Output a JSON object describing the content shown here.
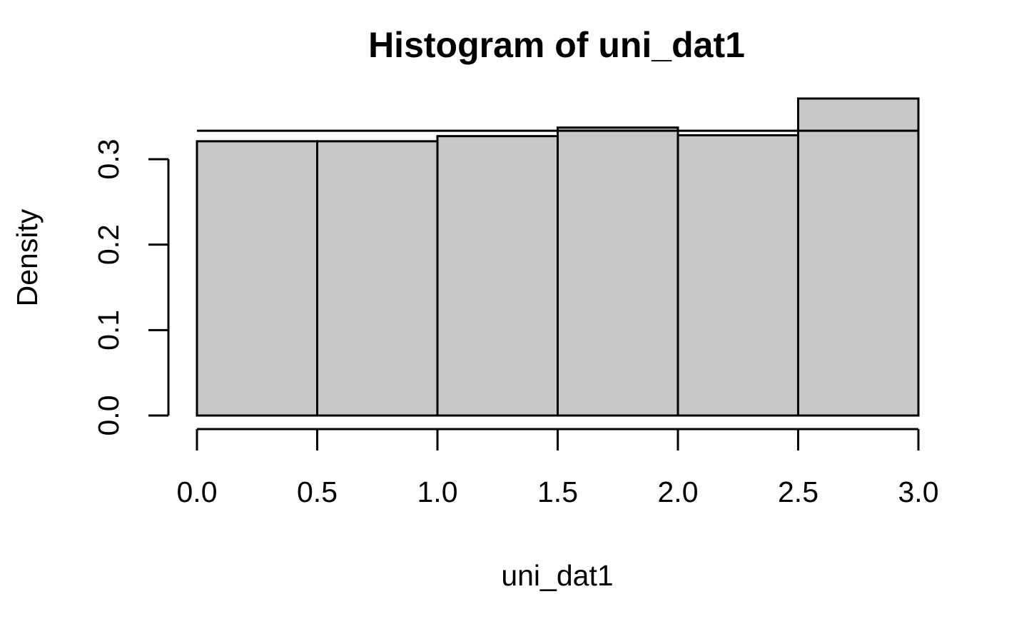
{
  "chart_data": {
    "type": "bar",
    "title": "Histogram of uni_dat1",
    "xlabel": "uni_dat1",
    "ylabel": "Density",
    "bins": [
      {
        "x0": 0.0,
        "x1": 0.5,
        "density": 0.321
      },
      {
        "x0": 0.5,
        "x1": 1.0,
        "density": 0.321
      },
      {
        "x0": 1.0,
        "x1": 1.5,
        "density": 0.327
      },
      {
        "x0": 1.5,
        "x1": 2.0,
        "density": 0.337
      },
      {
        "x0": 2.0,
        "x1": 2.5,
        "density": 0.328
      },
      {
        "x0": 2.5,
        "x1": 3.0,
        "density": 0.371
      }
    ],
    "reference_line": {
      "y": 0.3333,
      "x0": 0.0,
      "x1": 3.0
    },
    "xlim": [
      0.0,
      3.0
    ],
    "ylim": [
      0.0,
      0.371
    ],
    "x_ticks": [
      0.0,
      0.5,
      1.0,
      1.5,
      2.0,
      2.5,
      3.0
    ],
    "x_tick_labels": [
      "0.0",
      "0.5",
      "1.0",
      "1.5",
      "2.0",
      "2.5",
      "3.0"
    ],
    "y_ticks": [
      0.0,
      0.1,
      0.2,
      0.3
    ],
    "y_tick_labels": [
      "0.0",
      "0.1",
      "0.2",
      "0.3"
    ],
    "grid": false,
    "legend": "none",
    "colors": {
      "bar_fill": "#c8c8c8",
      "bar_stroke": "#000000",
      "line": "#000000"
    }
  }
}
